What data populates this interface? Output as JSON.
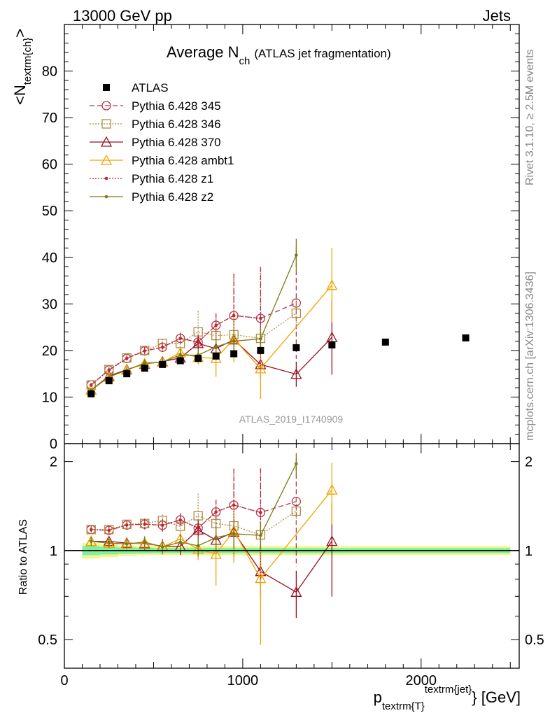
{
  "header": {
    "left": "13000 GeV pp",
    "right": "Jets"
  },
  "side_labels": {
    "rivet": "Rivet 3.1.10, ≥ 2.5M events",
    "mcplots": "mcplots.cern.ch [arXiv:1306.3436]"
  },
  "chart_data": {
    "type": "scatter",
    "title_main": "Average N",
    "title_sub": "ch",
    "title_note": "(ATLAS jet fragmentation)",
    "ylabel": "<N",
    "ylabel_sub": "textrm{ch}",
    "ylabel_end": ">",
    "xlabel": "p",
    "xlabel_sub": "textrm{T}",
    "xlabel_sup": "textrm{jet}",
    "xlabel_end": "} [GeV]",
    "ratio_ylabel": "Ratio to ATLAS",
    "analysis_id": "ATLAS_2019_I1740909",
    "xlim": [
      0,
      2550
    ],
    "ylim": [
      0,
      90
    ],
    "ratio_ylim": [
      0.4,
      2.3
    ],
    "ratio_log": true,
    "x_ticks": [
      0,
      1000,
      2000
    ],
    "x_tick_labels": [
      "0",
      "1000",
      "2000"
    ],
    "y_ticks": [
      0,
      10,
      20,
      30,
      40,
      50,
      60,
      70,
      80
    ],
    "y_tick_labels": [
      "0",
      "10",
      "20",
      "30",
      "40",
      "50",
      "60",
      "70",
      "80"
    ],
    "ratio_ticks": [
      0.5,
      1,
      2
    ],
    "ratio_tick_labels": [
      "0.5",
      "1",
      "2"
    ],
    "legend_position": "top-left",
    "data": {
      "name": "ATLAS",
      "x": [
        150,
        250,
        350,
        450,
        550,
        650,
        750,
        850,
        950,
        1100,
        1300,
        1500,
        1800,
        2250
      ],
      "xlo": [
        100,
        200,
        300,
        400,
        500,
        600,
        700,
        800,
        900,
        1000,
        1200,
        1400,
        1600,
        2000
      ],
      "xhi": [
        200,
        300,
        400,
        500,
        600,
        700,
        800,
        900,
        1000,
        1200,
        1400,
        1600,
        2000,
        2500
      ],
      "y": [
        10.7,
        13.5,
        15.0,
        16.2,
        17.0,
        17.8,
        18.3,
        18.8,
        19.3,
        20.0,
        20.6,
        21.2,
        21.8,
        22.7
      ],
      "band_inner": [
        0.035,
        0.03,
        0.025,
        0.022,
        0.02,
        0.02,
        0.02,
        0.02,
        0.02,
        0.02,
        0.02,
        0.02,
        0.02,
        0.02
      ],
      "band_outer": [
        0.06,
        0.05,
        0.04,
        0.035,
        0.035,
        0.035,
        0.035,
        0.035,
        0.035,
        0.035,
        0.035,
        0.035,
        0.035,
        0.035
      ]
    },
    "series": [
      {
        "name": "Pythia 6.428 345",
        "color": "#b2384c",
        "dash": "7,4",
        "marker": "circle",
        "x": [
          150,
          250,
          350,
          450,
          550,
          650,
          750,
          850,
          950,
          1100,
          1300
        ],
        "y": [
          12.6,
          15.8,
          18.3,
          19.9,
          20.7,
          22.6,
          21.8,
          25.4,
          27.5,
          26.9,
          30.2
        ],
        "err": [
          0.4,
          0.5,
          0.6,
          0.8,
          1.0,
          1.2,
          1.5,
          2.5,
          9.0,
          11.0,
          12.0
        ]
      },
      {
        "name": "Pythia 6.428 346",
        "color": "#b08c47",
        "dash": "2,2",
        "marker": "square",
        "x": [
          150,
          250,
          350,
          450,
          550,
          650,
          750,
          850,
          950,
          1100,
          1300
        ],
        "y": [
          12.6,
          15.9,
          18.4,
          20.0,
          21.5,
          21.5,
          24.0,
          23.2,
          23.4,
          22.6,
          28.0
        ],
        "err": [
          0.4,
          0.5,
          0.6,
          0.8,
          1.0,
          1.2,
          4.5,
          2.0,
          2.5,
          2.5,
          3.0
        ]
      },
      {
        "name": "Pythia 6.428 370",
        "color": "#9a0f1f",
        "dash": "",
        "marker": "triangle",
        "x": [
          150,
          250,
          350,
          450,
          550,
          650,
          750,
          850,
          950,
          1100,
          1300,
          1500
        ],
        "y": [
          11.5,
          14.5,
          15.9,
          17.1,
          17.6,
          18.4,
          21.5,
          20.4,
          22.3,
          17.0,
          14.9,
          22.8
        ],
        "err": [
          0.4,
          0.5,
          0.6,
          0.8,
          1.0,
          1.2,
          1.5,
          2.0,
          2.5,
          3.0,
          2.7,
          8.0
        ]
      },
      {
        "name": "Pythia 6.428 ambt1",
        "color": "#f0a500",
        "dash": "",
        "marker": "triangle",
        "x": [
          150,
          250,
          350,
          450,
          550,
          650,
          750,
          850,
          950,
          1100,
          1500
        ],
        "y": [
          11.5,
          14.3,
          15.8,
          17.2,
          17.5,
          19.5,
          18.5,
          18.3,
          22.5,
          16.1,
          34.0
        ],
        "err": [
          0.4,
          0.5,
          0.6,
          0.8,
          1.0,
          1.2,
          1.5,
          4.0,
          5.0,
          6.5,
          8.0
        ]
      },
      {
        "name": "Pythia 6.428 z1",
        "color": "#c2252f",
        "dash": "2,2",
        "marker": "dot",
        "x": [
          150,
          250,
          350,
          450,
          550,
          650,
          750,
          850,
          950,
          1100
        ],
        "y": [
          12.6,
          15.8,
          18.3,
          19.9,
          20.7,
          22.6,
          21.8,
          25.4,
          27.5,
          26.9
        ],
        "err": [
          0.4,
          0.5,
          0.6,
          0.8,
          1.0,
          1.2,
          1.5,
          2.5,
          9.0,
          11.0
        ]
      },
      {
        "name": "Pythia 6.428 z2",
        "color": "#7a7a14",
        "dash": "",
        "marker": "dot",
        "x": [
          150,
          250,
          350,
          450,
          550,
          650,
          750,
          850,
          950,
          1100,
          1300
        ],
        "y": [
          11.5,
          14.3,
          15.8,
          17.3,
          17.5,
          19.0,
          19.0,
          20.8,
          22.0,
          22.5,
          40.5
        ],
        "err": [
          0.4,
          0.5,
          0.6,
          0.8,
          1.0,
          1.2,
          1.5,
          2.0,
          2.5,
          2.5,
          3.5
        ]
      }
    ]
  }
}
